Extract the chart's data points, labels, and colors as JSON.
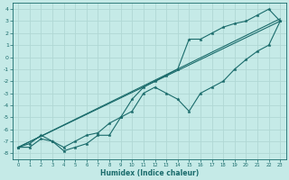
{
  "bg_color": "#c5eae7",
  "grid_color": "#b0d8d4",
  "line_color": "#1a6b6b",
  "xlabel": "Humidex (Indice chaleur)",
  "xlim": [
    -0.5,
    23.5
  ],
  "ylim": [
    -8.5,
    4.5
  ],
  "xticks": [
    0,
    1,
    2,
    3,
    4,
    5,
    6,
    7,
    8,
    9,
    10,
    11,
    12,
    13,
    14,
    15,
    16,
    17,
    18,
    19,
    20,
    21,
    22,
    23
  ],
  "yticks": [
    -8,
    -7,
    -6,
    -5,
    -4,
    -3,
    -2,
    -1,
    0,
    1,
    2,
    3,
    4
  ],
  "straight1": [
    -7.5,
    3.0
  ],
  "straight2": [
    -7.5,
    3.2
  ],
  "series1_x": [
    0,
    1,
    2,
    3,
    4,
    5,
    6,
    7,
    8,
    9,
    10,
    11,
    12,
    13,
    14,
    15,
    16,
    17,
    18,
    19,
    20,
    21,
    22,
    23
  ],
  "series1_y": [
    -7.5,
    -7.2,
    -6.5,
    -7.0,
    -7.5,
    -7.0,
    -6.5,
    -6.3,
    -5.5,
    -5.0,
    -3.5,
    -2.5,
    -2.0,
    -1.5,
    -1.0,
    1.5,
    1.5,
    2.0,
    2.5,
    2.8,
    3.0,
    3.5,
    4.0,
    3.0
  ],
  "series2_x": [
    0,
    1,
    2,
    3,
    4,
    5,
    6,
    7,
    8,
    9,
    10,
    11,
    12,
    13,
    14,
    15,
    16,
    17,
    18,
    19,
    20,
    21,
    22,
    23
  ],
  "series2_y": [
    -7.5,
    -7.5,
    -6.8,
    -7.0,
    -7.8,
    -7.5,
    -7.2,
    -6.5,
    -6.5,
    -5.0,
    -4.5,
    -3.0,
    -2.5,
    -3.0,
    -3.5,
    -4.5,
    -3.0,
    -2.5,
    -2.0,
    -1.0,
    -0.2,
    0.5,
    1.0,
    3.0
  ],
  "xlabel_fontsize": 5.5,
  "tick_fontsize": 4.5,
  "linewidth": 0.8,
  "markersize": 2.5
}
